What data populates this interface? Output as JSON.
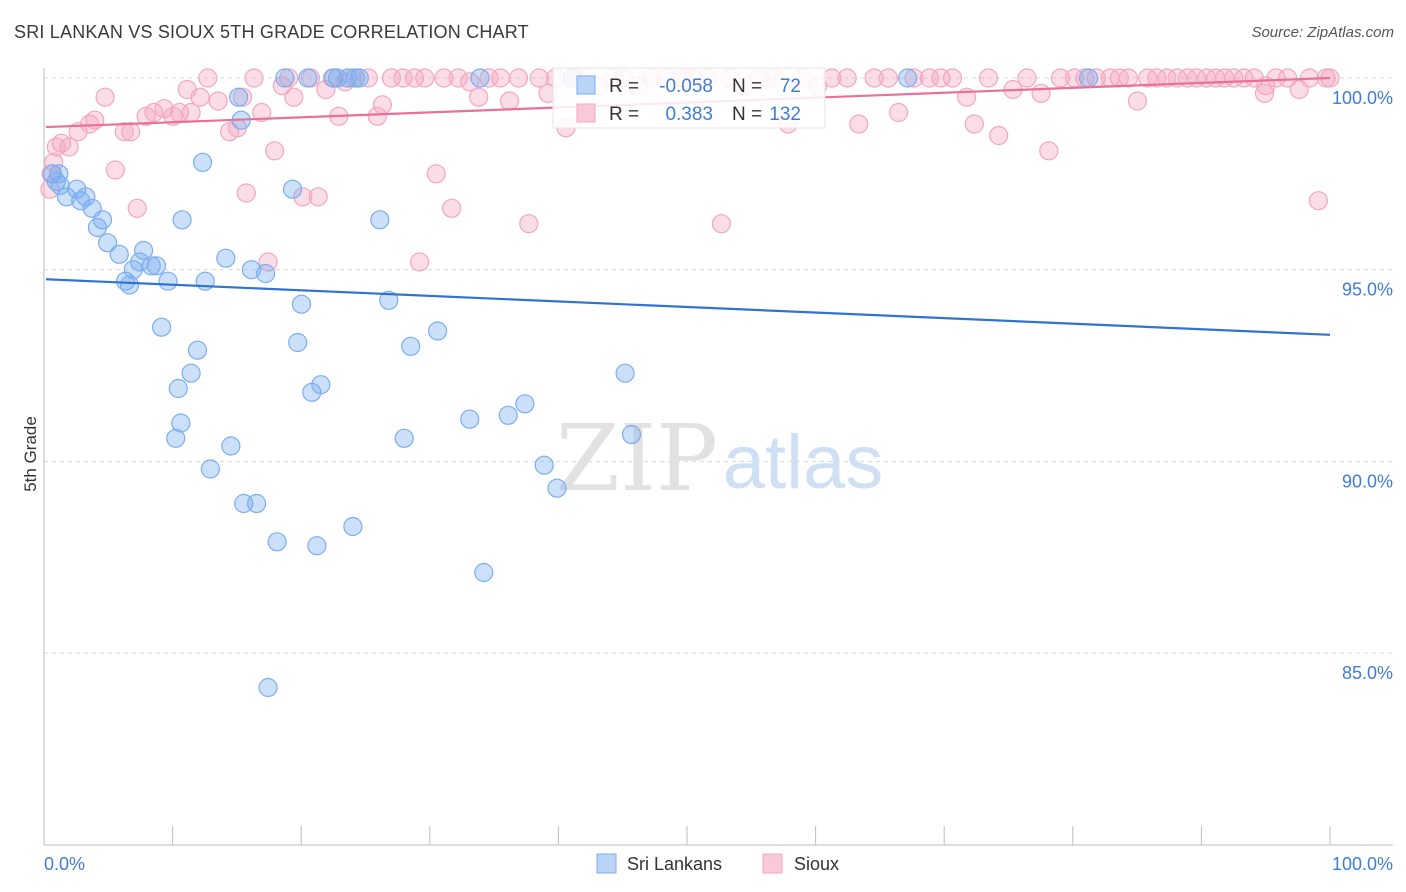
{
  "header": {
    "title": "SRI LANKAN VS SIOUX 5TH GRADE CORRELATION CHART",
    "source": "Source: ZipAtlas.com"
  },
  "watermark": {
    "part1": "ZIP",
    "part2": "atlas"
  },
  "colors": {
    "blue": "#7aaef0",
    "blue_line": "#2f74d0",
    "pink": "#f4a6c0",
    "pink_line": "#e8709a",
    "value_text": "#3f7dd6",
    "grid": "#d8d8d8"
  },
  "chart_data": {
    "type": "scatter",
    "title": "SRI LANKAN VS SIOUX 5TH GRADE CORRELATION CHART",
    "ylabel": "5th Grade",
    "xlabel": "",
    "xlim": [
      0,
      100
    ],
    "ylim": [
      80.5,
      100.8
    ],
    "x_tick_labels": {
      "left": "0.0%",
      "right": "100.0%"
    },
    "y_ticks": [
      100,
      95,
      90,
      85
    ],
    "y_tick_labels": [
      "100.0%",
      "95.0%",
      "90.0%",
      "85.0%"
    ],
    "legend_stats": [
      {
        "series": "Sri Lankans",
        "r_label": "R =",
        "r_value": "-0.058",
        "n_label": "N =",
        "n_value": "72"
      },
      {
        "series": "Sioux",
        "r_label": "R =",
        "r_value": "0.383",
        "n_label": "N =",
        "n_value": "132"
      }
    ],
    "legend": [
      "Sri Lankans",
      "Sioux"
    ],
    "series": [
      {
        "name": "Sri Lankans",
        "trend": {
          "x0": 0,
          "y0": 94.75,
          "x1": 100,
          "y1": 93.3
        },
        "points": [
          [
            0.5,
            97.5
          ],
          [
            0.8,
            97.3
          ],
          [
            1.0,
            97.5
          ],
          [
            1.1,
            97.2
          ],
          [
            1.6,
            96.9
          ],
          [
            2.4,
            97.1
          ],
          [
            2.7,
            96.8
          ],
          [
            3.1,
            96.9
          ],
          [
            3.6,
            96.6
          ],
          [
            4.0,
            96.1
          ],
          [
            4.4,
            96.3
          ],
          [
            4.8,
            95.7
          ],
          [
            5.7,
            95.4
          ],
          [
            6.2,
            94.7
          ],
          [
            6.5,
            94.6
          ],
          [
            6.8,
            95.0
          ],
          [
            7.3,
            95.2
          ],
          [
            7.6,
            95.5
          ],
          [
            8.2,
            95.1
          ],
          [
            8.6,
            95.1
          ],
          [
            9.5,
            94.7
          ],
          [
            10.1,
            90.6
          ],
          [
            9.0,
            93.5
          ],
          [
            10.3,
            91.9
          ],
          [
            10.5,
            91.0
          ],
          [
            11.3,
            92.3
          ],
          [
            11.8,
            92.9
          ],
          [
            10.6,
            96.3
          ],
          [
            12.2,
            97.8
          ],
          [
            12.4,
            94.7
          ],
          [
            12.8,
            89.8
          ],
          [
            14.0,
            95.3
          ],
          [
            14.4,
            90.4
          ],
          [
            15.2,
            98.9
          ],
          [
            15.0,
            99.5
          ],
          [
            15.4,
            88.9
          ],
          [
            16.0,
            95.0
          ],
          [
            16.4,
            88.9
          ],
          [
            17.1,
            94.9
          ],
          [
            17.3,
            84.1
          ],
          [
            18.0,
            87.9
          ],
          [
            18.6,
            100
          ],
          [
            19.2,
            97.1
          ],
          [
            19.6,
            93.1
          ],
          [
            19.9,
            94.1
          ],
          [
            20.4,
            100
          ],
          [
            20.7,
            91.8
          ],
          [
            21.1,
            87.8
          ],
          [
            21.4,
            92.0
          ],
          [
            22.4,
            100
          ],
          [
            22.7,
            100
          ],
          [
            23.5,
            100
          ],
          [
            24.1,
            100
          ],
          [
            23.9,
            88.3
          ],
          [
            24.4,
            100
          ],
          [
            26.0,
            96.3
          ],
          [
            26.7,
            94.2
          ],
          [
            27.9,
            90.6
          ],
          [
            28.4,
            93.0
          ],
          [
            30.5,
            93.4
          ],
          [
            33.0,
            91.1
          ],
          [
            33.8,
            100
          ],
          [
            34.1,
            87.1
          ],
          [
            36.0,
            91.2
          ],
          [
            37.3,
            91.5
          ],
          [
            38.8,
            89.9
          ],
          [
            39.8,
            89.3
          ],
          [
            41.0,
            100
          ],
          [
            45.1,
            92.3
          ],
          [
            45.6,
            90.7
          ],
          [
            67.1,
            100
          ],
          [
            81.2,
            100
          ]
        ]
      },
      {
        "name": "Sioux",
        "trend": {
          "x0": 0,
          "y0": 98.72,
          "x1": 100,
          "y1": 100.0
        },
        "points": [
          [
            0.3,
            97.1
          ],
          [
            0.4,
            97.5
          ],
          [
            0.6,
            97.8
          ],
          [
            0.8,
            98.2
          ],
          [
            1.2,
            98.3
          ],
          [
            1.8,
            98.2
          ],
          [
            2.5,
            98.6
          ],
          [
            3.4,
            98.8
          ],
          [
            3.8,
            98.9
          ],
          [
            4.6,
            99.5
          ],
          [
            5.4,
            97.6
          ],
          [
            6.1,
            98.6
          ],
          [
            6.6,
            98.6
          ],
          [
            7.1,
            96.6
          ],
          [
            7.8,
            99.0
          ],
          [
            8.4,
            99.1
          ],
          [
            9.2,
            99.2
          ],
          [
            9.9,
            99.0
          ],
          [
            10.4,
            99.1
          ],
          [
            11.0,
            99.7
          ],
          [
            11.3,
            99.1
          ],
          [
            12.0,
            99.5
          ],
          [
            12.6,
            100
          ],
          [
            13.4,
            99.4
          ],
          [
            14.3,
            98.6
          ],
          [
            14.9,
            98.7
          ],
          [
            15.3,
            99.5
          ],
          [
            15.6,
            97.0
          ],
          [
            16.2,
            100
          ],
          [
            16.8,
            99.1
          ],
          [
            17.3,
            95.2
          ],
          [
            17.8,
            98.1
          ],
          [
            18.4,
            99.8
          ],
          [
            18.9,
            100
          ],
          [
            19.3,
            99.5
          ],
          [
            20.0,
            96.9
          ],
          [
            20.6,
            100
          ],
          [
            21.2,
            96.9
          ],
          [
            21.8,
            99.7
          ],
          [
            22.3,
            100
          ],
          [
            22.8,
            99.0
          ],
          [
            23.3,
            99.9
          ],
          [
            23.8,
            100
          ],
          [
            25.1,
            100
          ],
          [
            25.8,
            99.0
          ],
          [
            26.2,
            99.3
          ],
          [
            26.9,
            100
          ],
          [
            27.8,
            100
          ],
          [
            28.7,
            100
          ],
          [
            29.1,
            95.2
          ],
          [
            29.5,
            100
          ],
          [
            30.4,
            97.5
          ],
          [
            31.0,
            100
          ],
          [
            31.6,
            96.6
          ],
          [
            32.1,
            100
          ],
          [
            33.0,
            99.9
          ],
          [
            33.7,
            99.5
          ],
          [
            34.5,
            100
          ],
          [
            35.4,
            100
          ],
          [
            36.1,
            99.4
          ],
          [
            36.8,
            100
          ],
          [
            37.6,
            96.2
          ],
          [
            38.4,
            100
          ],
          [
            39.1,
            99.6
          ],
          [
            39.7,
            100
          ],
          [
            40.5,
            98.7
          ],
          [
            41.3,
            100
          ],
          [
            42.1,
            100
          ],
          [
            43.0,
            99.8
          ],
          [
            44.2,
            100
          ],
          [
            45.0,
            100
          ],
          [
            46.1,
            99.8
          ],
          [
            47.2,
            100
          ],
          [
            48.3,
            100
          ],
          [
            49.6,
            100
          ],
          [
            50.4,
            100
          ],
          [
            51.5,
            100
          ],
          [
            52.6,
            96.2
          ],
          [
            53.3,
            100
          ],
          [
            54.4,
            99.8
          ],
          [
            55.6,
            100
          ],
          [
            56.7,
            100
          ],
          [
            57.8,
            98.8
          ],
          [
            58.9,
            100
          ],
          [
            60.1,
            99.8
          ],
          [
            61.2,
            100
          ],
          [
            62.4,
            100
          ],
          [
            63.3,
            98.8
          ],
          [
            64.5,
            100
          ],
          [
            65.6,
            100
          ],
          [
            66.4,
            99.1
          ],
          [
            67.6,
            100
          ],
          [
            68.8,
            100
          ],
          [
            69.7,
            100
          ],
          [
            70.6,
            100
          ],
          [
            71.7,
            99.5
          ],
          [
            72.3,
            98.8
          ],
          [
            73.4,
            100
          ],
          [
            74.2,
            98.5
          ],
          [
            75.3,
            99.7
          ],
          [
            76.4,
            100
          ],
          [
            77.5,
            99.6
          ],
          [
            78.1,
            98.1
          ],
          [
            79.0,
            100
          ],
          [
            80.1,
            100
          ],
          [
            80.9,
            100
          ],
          [
            81.8,
            100
          ],
          [
            82.9,
            100
          ],
          [
            83.6,
            100
          ],
          [
            84.3,
            100
          ],
          [
            85.0,
            99.4
          ],
          [
            85.8,
            100
          ],
          [
            86.5,
            100
          ],
          [
            87.3,
            100
          ],
          [
            88.1,
            100
          ],
          [
            88.9,
            100
          ],
          [
            89.6,
            100
          ],
          [
            90.4,
            100
          ],
          [
            91.1,
            100
          ],
          [
            91.8,
            100
          ],
          [
            92.5,
            100
          ],
          [
            93.3,
            100
          ],
          [
            94.1,
            100
          ],
          [
            95.0,
            99.8
          ],
          [
            95.8,
            100
          ],
          [
            96.7,
            100
          ],
          [
            97.6,
            99.7
          ],
          [
            98.4,
            100
          ],
          [
            99.1,
            96.8
          ],
          [
            99.7,
            100
          ],
          [
            100.0,
            100
          ],
          [
            94.9,
            99.6
          ]
        ]
      }
    ]
  }
}
